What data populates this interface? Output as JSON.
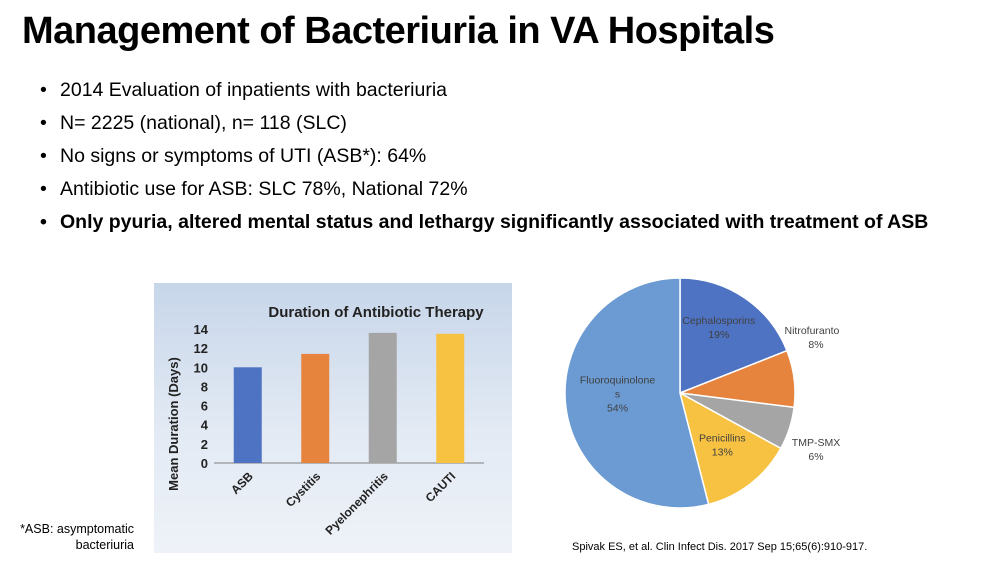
{
  "slide": {
    "title": "Management of Bacteriuria in VA Hospitals",
    "bullet_glyph": "•",
    "bullets": [
      {
        "text": "2014 Evaluation of inpatients with bacteriuria",
        "bold": false
      },
      {
        "text": "N= 2225 (national), n= 118 (SLC)",
        "bold": false
      },
      {
        "text": "No signs or symptoms of UTI (ASB*): 64%",
        "bold": false
      },
      {
        "text": "Antibiotic use for ASB: SLC 78%, National 72%",
        "bold": false
      },
      {
        "text": "Only pyuria, altered mental status and lethargy significantly associated with treatment of ASB",
        "bold": true
      }
    ],
    "footnote_line1": "*ASB: asymptomatic",
    "footnote_line2": "bacteriuria",
    "citation": "Spivak ES, et al. Clin Infect Dis. 2017 Sep 15;65(6):910-917."
  },
  "chart_data": [
    {
      "type": "bar",
      "title": "Duration of Antibiotic Therapy",
      "xlabel": "",
      "ylabel": "Mean Duration (Days)",
      "categories": [
        "ASB",
        "Cystitis",
        "Pyelonephritis",
        "CAUTI"
      ],
      "values": [
        10,
        11.4,
        13.6,
        13.5
      ],
      "colors": [
        "#4f73c3",
        "#e6843e",
        "#a5a5a5",
        "#f7c242"
      ],
      "ylim": [
        0,
        14
      ],
      "yticks": [
        "0",
        "2",
        "4",
        "6",
        "8",
        "10",
        "12",
        "14"
      ],
      "grid": false
    },
    {
      "type": "pie",
      "title": "",
      "slices": [
        {
          "label": "Cephalosporins",
          "value_label": "19%",
          "value": 19,
          "color": "#4f73c3"
        },
        {
          "label": "Nitrofurantoin",
          "value_label": "8%",
          "value": 8,
          "color": "#e6843e"
        },
        {
          "label": "TMP-SMX",
          "value_label": "6%",
          "value": 6,
          "color": "#a5a5a5"
        },
        {
          "label": "Penicillins",
          "value_label": "13%",
          "value": 13,
          "color": "#f7c242"
        },
        {
          "label": "Fluoroquinolones",
          "value_label": "54%",
          "value": 54,
          "color": "#6b9bd2"
        }
      ]
    }
  ]
}
